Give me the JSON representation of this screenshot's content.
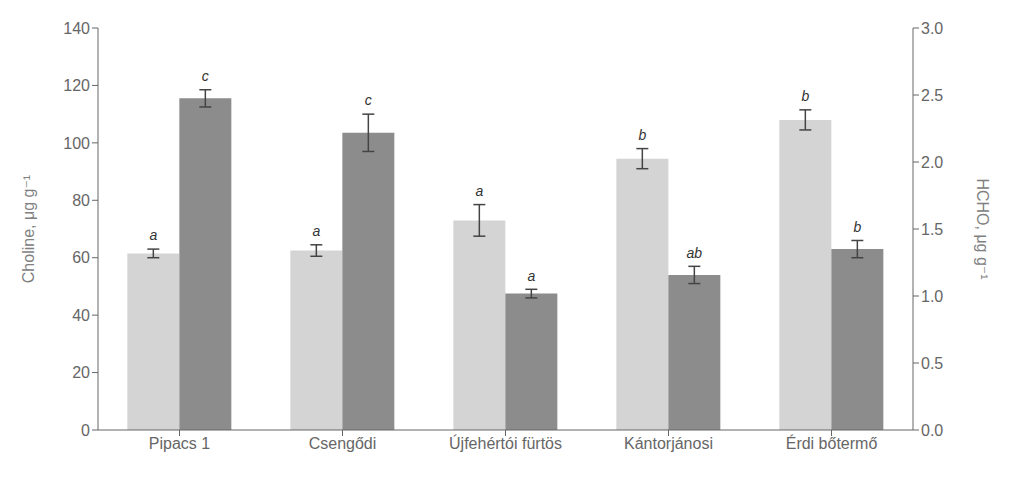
{
  "chart_data": {
    "type": "bar",
    "categories": [
      "Pipacs 1",
      "Csengődi",
      "Újfehértói fürtös",
      "Kántorjánosi",
      "Érdi bőtermő"
    ],
    "series": [
      {
        "color": "#d4d4d4",
        "values": [
          61.5,
          62.5,
          73.0,
          94.5,
          108.0
        ],
        "errors": [
          1.5,
          2.0,
          5.5,
          3.5,
          3.5
        ],
        "letters": [
          "a",
          "a",
          "a",
          "b",
          "b"
        ]
      },
      {
        "color": "#8c8c8c",
        "values": [
          115.5,
          103.5,
          47.5,
          54.0,
          63.0
        ],
        "errors": [
          3.0,
          6.5,
          1.5,
          3.0,
          3.0
        ],
        "letters": [
          "c",
          "c",
          "a",
          "ab",
          "b"
        ]
      }
    ],
    "ylim": [
      0,
      140
    ],
    "yticks": [
      0,
      20,
      40,
      60,
      80,
      100,
      120,
      140
    ],
    "y2lim": [
      0,
      3.0
    ],
    "y2ticks": [
      {
        "value": 0,
        "label": "0.0"
      },
      0.5,
      {
        "value": 1.0,
        "label": "1.0"
      },
      1.5,
      {
        "value": 2.0,
        "label": "2.0"
      },
      2.5,
      {
        "value": 3.0,
        "label": "3.0"
      }
    ],
    "ylabel": "Choline, μg g⁻¹",
    "y2label": "HCHO, μg g⁻¹",
    "grid": false
  }
}
